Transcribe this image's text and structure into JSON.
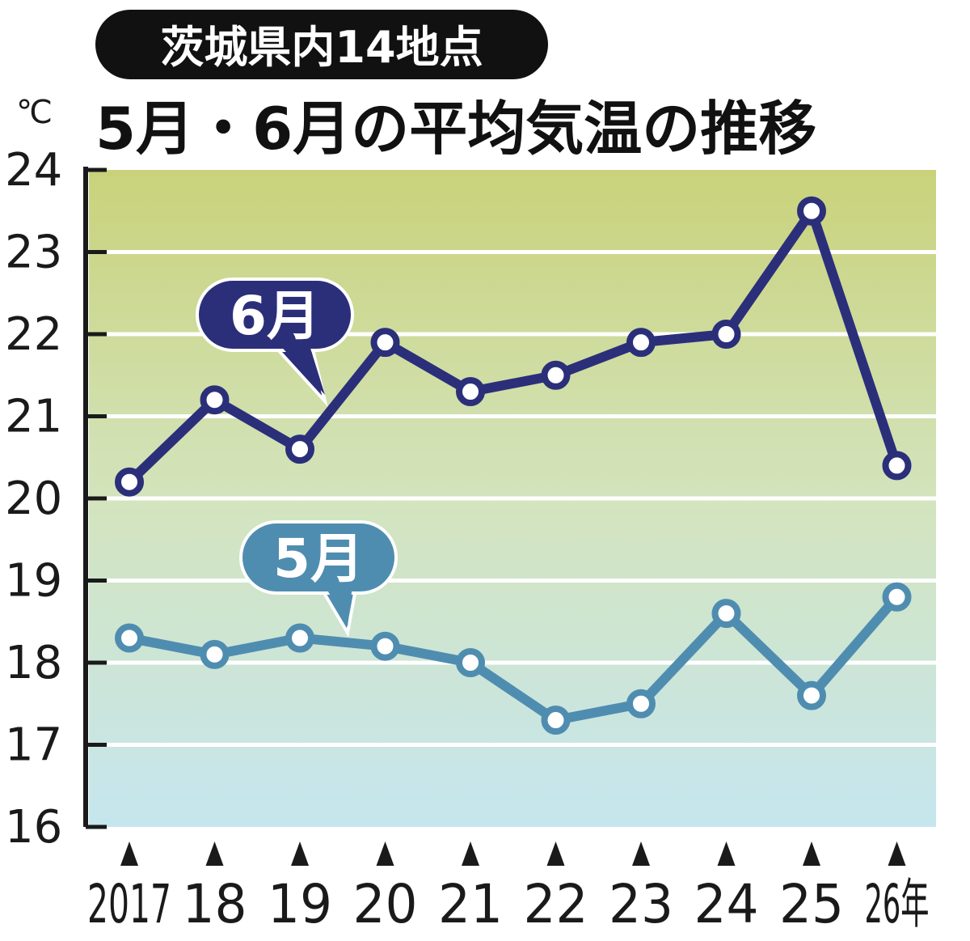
{
  "header": {
    "tag": "茨城県内14地点",
    "unit": "℃",
    "title": "5月・6月の平均気温の推移"
  },
  "colors": {
    "june": "#2b2f7a",
    "may": "#4f8db0",
    "band_top": "#c9d27a",
    "band_bottom": "#c6e6ef",
    "frame": "#1a1a1a"
  },
  "chart_data": {
    "type": "line",
    "title": "5月・6月の平均気温の推移",
    "ylabel": "℃",
    "ylim": [
      16,
      24
    ],
    "yticks": [
      "16",
      "17",
      "18",
      "19",
      "20",
      "21",
      "22",
      "23",
      "24"
    ],
    "categories": [
      "2017",
      "18",
      "19",
      "20",
      "21",
      "22",
      "23",
      "24",
      "25",
      "26年"
    ],
    "grid": true,
    "series": [
      {
        "name": "6月",
        "color": "#2b2f7a",
        "values": [
          20.2,
          21.2,
          20.6,
          21.9,
          21.3,
          21.5,
          21.9,
          22.0,
          23.5,
          20.4
        ]
      },
      {
        "name": "5月",
        "color": "#4f8db0",
        "values": [
          18.3,
          18.1,
          18.3,
          18.2,
          18.0,
          17.3,
          17.5,
          18.6,
          17.6,
          18.8
        ]
      }
    ]
  }
}
